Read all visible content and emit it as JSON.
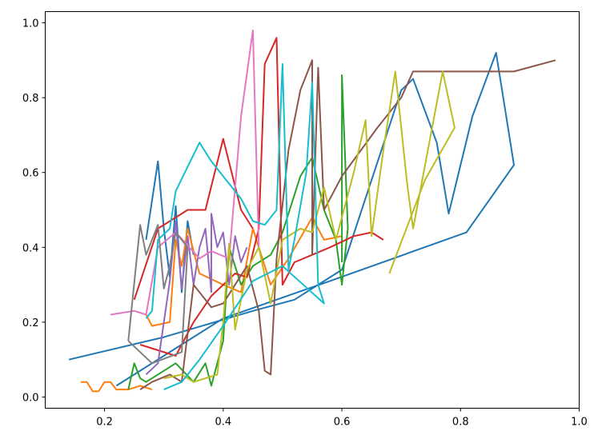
{
  "chart_data": {
    "type": "line",
    "title": "",
    "xlabel": "",
    "ylabel": "",
    "xlim": [
      0.1,
      1.0
    ],
    "ylim": [
      -0.03,
      1.03
    ],
    "xticks": [
      "0.2",
      "0.4",
      "0.6",
      "0.8",
      "1.0"
    ],
    "yticks": [
      "0.0",
      "0.2",
      "0.4",
      "0.6",
      "0.8",
      "1.0"
    ],
    "grid": false,
    "legend": "none",
    "series": [
      {
        "color": "#1f77b4",
        "points": [
          [
            0.14,
            0.1
          ],
          [
            0.3,
            0.16
          ],
          [
            0.45,
            0.23
          ],
          [
            0.52,
            0.26
          ],
          [
            0.6,
            0.34
          ],
          [
            0.7,
            0.82
          ],
          [
            0.72,
            0.85
          ],
          [
            0.76,
            0.68
          ],
          [
            0.78,
            0.49
          ],
          [
            0.82,
            0.75
          ],
          [
            0.86,
            0.92
          ],
          [
            0.89,
            0.62
          ],
          [
            0.81,
            0.44
          ],
          [
            0.58,
            0.31
          ],
          [
            0.4,
            0.21
          ],
          [
            0.22,
            0.03
          ]
        ]
      },
      {
        "color": "#1f77b4",
        "points": [
          [
            0.27,
            0.42
          ],
          [
            0.29,
            0.63
          ],
          [
            0.3,
            0.45
          ],
          [
            0.31,
            0.32
          ],
          [
            0.32,
            0.51
          ],
          [
            0.33,
            0.28
          ],
          [
            0.34,
            0.47
          ],
          [
            0.35,
            0.38
          ]
        ]
      },
      {
        "color": "#ff7f0e",
        "points": [
          [
            0.16,
            0.04
          ],
          [
            0.17,
            0.04
          ],
          [
            0.18,
            0.015
          ],
          [
            0.19,
            0.015
          ],
          [
            0.2,
            0.04
          ],
          [
            0.21,
            0.04
          ],
          [
            0.22,
            0.02
          ],
          [
            0.24,
            0.02
          ],
          [
            0.26,
            0.03
          ],
          [
            0.28,
            0.02
          ]
        ]
      },
      {
        "color": "#ff7f0e",
        "points": [
          [
            0.27,
            0.22
          ],
          [
            0.28,
            0.19
          ],
          [
            0.31,
            0.2
          ],
          [
            0.32,
            0.42
          ],
          [
            0.33,
            0.35
          ],
          [
            0.34,
            0.45
          ],
          [
            0.36,
            0.33
          ],
          [
            0.4,
            0.3
          ],
          [
            0.43,
            0.28
          ],
          [
            0.45,
            0.45
          ],
          [
            0.48,
            0.3
          ],
          [
            0.51,
            0.37
          ],
          [
            0.55,
            0.48
          ],
          [
            0.57,
            0.42
          ],
          [
            0.6,
            0.43
          ]
        ]
      },
      {
        "color": "#2ca02c",
        "points": [
          [
            0.24,
            0.02
          ],
          [
            0.25,
            0.09
          ],
          [
            0.26,
            0.05
          ],
          [
            0.27,
            0.04
          ],
          [
            0.3,
            0.07
          ],
          [
            0.32,
            0.09
          ],
          [
            0.35,
            0.04
          ],
          [
            0.37,
            0.09
          ],
          [
            0.38,
            0.03
          ],
          [
            0.4,
            0.15
          ],
          [
            0.41,
            0.4
          ],
          [
            0.43,
            0.3
          ],
          [
            0.45,
            0.35
          ],
          [
            0.48,
            0.38
          ],
          [
            0.5,
            0.44
          ],
          [
            0.53,
            0.59
          ],
          [
            0.55,
            0.64
          ],
          [
            0.57,
            0.5
          ],
          [
            0.59,
            0.42
          ],
          [
            0.6,
            0.3
          ],
          [
            0.61,
            0.45
          ],
          [
            0.6,
            0.86
          ],
          [
            0.6,
            0.36
          ]
        ]
      },
      {
        "color": "#d62728",
        "points": [
          [
            0.26,
            0.14
          ],
          [
            0.32,
            0.11
          ],
          [
            0.35,
            0.2
          ],
          [
            0.38,
            0.27
          ],
          [
            0.4,
            0.3
          ],
          [
            0.42,
            0.33
          ],
          [
            0.44,
            0.32
          ],
          [
            0.46,
            0.45
          ],
          [
            0.47,
            0.89
          ],
          [
            0.49,
            0.96
          ],
          [
            0.5,
            0.3
          ],
          [
            0.52,
            0.36
          ],
          [
            0.55,
            0.38
          ],
          [
            0.58,
            0.4
          ],
          [
            0.62,
            0.43
          ],
          [
            0.65,
            0.44
          ],
          [
            0.67,
            0.42
          ]
        ]
      },
      {
        "color": "#d62728",
        "points": [
          [
            0.25,
            0.26
          ],
          [
            0.29,
            0.45
          ],
          [
            0.34,
            0.5
          ],
          [
            0.37,
            0.5
          ],
          [
            0.4,
            0.69
          ],
          [
            0.43,
            0.5
          ],
          [
            0.45,
            0.45
          ]
        ]
      },
      {
        "color": "#9467bd",
        "points": [
          [
            0.27,
            0.06
          ],
          [
            0.29,
            0.09
          ],
          [
            0.31,
            0.31
          ],
          [
            0.32,
            0.47
          ],
          [
            0.33,
            0.29
          ],
          [
            0.34,
            0.43
          ],
          [
            0.35,
            0.3
          ],
          [
            0.36,
            0.4
          ],
          [
            0.37,
            0.45
          ],
          [
            0.38,
            0.28
          ],
          [
            0.38,
            0.49
          ],
          [
            0.39,
            0.4
          ],
          [
            0.4,
            0.44
          ],
          [
            0.41,
            0.3
          ],
          [
            0.42,
            0.43
          ],
          [
            0.43,
            0.36
          ],
          [
            0.44,
            0.4
          ]
        ]
      },
      {
        "color": "#8c564b",
        "points": [
          [
            0.26,
            0.02
          ],
          [
            0.28,
            0.04
          ],
          [
            0.31,
            0.06
          ],
          [
            0.33,
            0.04
          ],
          [
            0.35,
            0.3
          ],
          [
            0.38,
            0.24
          ],
          [
            0.4,
            0.25
          ],
          [
            0.44,
            0.35
          ],
          [
            0.46,
            0.23
          ],
          [
            0.47,
            0.07
          ],
          [
            0.48,
            0.06
          ],
          [
            0.49,
            0.37
          ],
          [
            0.51,
            0.66
          ],
          [
            0.53,
            0.82
          ],
          [
            0.55,
            0.9
          ],
          [
            0.55,
            0.38
          ],
          [
            0.56,
            0.88
          ],
          [
            0.57,
            0.5
          ],
          [
            0.6,
            0.59
          ],
          [
            0.66,
            0.72
          ],
          [
            0.7,
            0.8
          ],
          [
            0.72,
            0.87
          ],
          [
            0.89,
            0.87
          ],
          [
            0.96,
            0.9
          ]
        ]
      },
      {
        "color": "#e377c2",
        "points": [
          [
            0.21,
            0.22
          ],
          [
            0.25,
            0.23
          ],
          [
            0.27,
            0.22
          ],
          [
            0.29,
            0.4
          ],
          [
            0.32,
            0.44
          ],
          [
            0.36,
            0.37
          ],
          [
            0.38,
            0.39
          ],
          [
            0.41,
            0.37
          ],
          [
            0.43,
            0.75
          ],
          [
            0.45,
            0.98
          ],
          [
            0.46,
            0.4
          ]
        ]
      },
      {
        "color": "#7f7f7f",
        "points": [
          [
            0.24,
            0.15
          ],
          [
            0.26,
            0.46
          ],
          [
            0.27,
            0.38
          ],
          [
            0.29,
            0.46
          ],
          [
            0.3,
            0.29
          ],
          [
            0.31,
            0.35
          ],
          [
            0.32,
            0.44
          ],
          [
            0.34,
            0.4
          ],
          [
            0.33,
            0.12
          ],
          [
            0.28,
            0.09
          ],
          [
            0.24,
            0.15
          ]
        ]
      },
      {
        "color": "#bcbd22",
        "points": [
          [
            0.3,
            0.05
          ],
          [
            0.33,
            0.06
          ],
          [
            0.35,
            0.04
          ],
          [
            0.39,
            0.06
          ],
          [
            0.4,
            0.2
          ],
          [
            0.41,
            0.41
          ],
          [
            0.42,
            0.18
          ],
          [
            0.44,
            0.34
          ],
          [
            0.46,
            0.4
          ],
          [
            0.48,
            0.25
          ],
          [
            0.5,
            0.42
          ],
          [
            0.53,
            0.45
          ],
          [
            0.55,
            0.44
          ],
          [
            0.57,
            0.56
          ],
          [
            0.59,
            0.42
          ],
          [
            0.62,
            0.6
          ],
          [
            0.64,
            0.74
          ],
          [
            0.65,
            0.43
          ],
          [
            0.67,
            0.66
          ],
          [
            0.69,
            0.87
          ],
          [
            0.71,
            0.57
          ],
          [
            0.72,
            0.45
          ],
          [
            0.77,
            0.87
          ],
          [
            0.79,
            0.72
          ],
          [
            0.74,
            0.58
          ],
          [
            0.68,
            0.33
          ]
        ]
      },
      {
        "color": "#17becf",
        "points": [
          [
            0.27,
            0.21
          ],
          [
            0.28,
            0.23
          ],
          [
            0.29,
            0.42
          ],
          [
            0.31,
            0.45
          ],
          [
            0.32,
            0.55
          ],
          [
            0.36,
            0.68
          ],
          [
            0.38,
            0.63
          ],
          [
            0.43,
            0.53
          ],
          [
            0.45,
            0.47
          ],
          [
            0.47,
            0.46
          ],
          [
            0.49,
            0.5
          ],
          [
            0.5,
            0.89
          ],
          [
            0.51,
            0.34
          ],
          [
            0.52,
            0.42
          ],
          [
            0.54,
            0.6
          ],
          [
            0.55,
            0.84
          ],
          [
            0.56,
            0.3
          ],
          [
            0.57,
            0.25
          ],
          [
            0.5,
            0.35
          ],
          [
            0.45,
            0.31
          ],
          [
            0.4,
            0.19
          ],
          [
            0.36,
            0.1
          ],
          [
            0.33,
            0.04
          ],
          [
            0.3,
            0.02
          ]
        ]
      }
    ]
  }
}
